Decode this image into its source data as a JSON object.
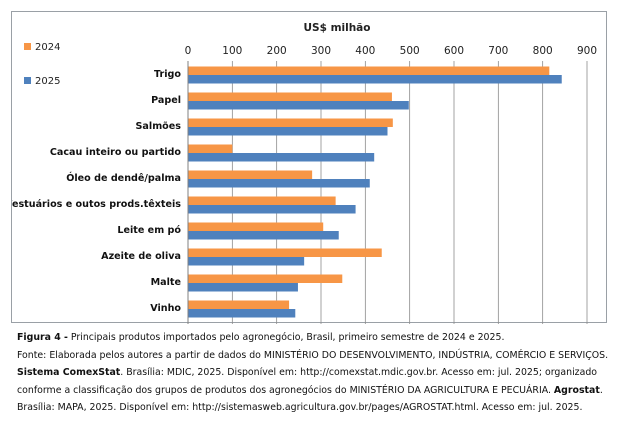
{
  "chart_data": {
    "type": "bar",
    "orientation": "horizontal",
    "title": "US$ milhão",
    "categories": [
      "Trigo",
      "Papel",
      "Salmões",
      "Cacau inteiro ou partido",
      "Óleo de dendê/palma",
      "Vestuários e outos prods.têxteis",
      "Leite em pó",
      "Azeite de oliva",
      "Malte",
      "Vinho"
    ],
    "series": [
      {
        "name": "2024",
        "color": "#F79646",
        "values": [
          815,
          460,
          462,
          100,
          280,
          333,
          305,
          437,
          348,
          228
        ]
      },
      {
        "name": "2025",
        "color": "#4F81BD",
        "values": [
          843,
          498,
          450,
          420,
          410,
          378,
          340,
          262,
          248,
          242
        ]
      }
    ],
    "x_ticks": [
      "0",
      "100",
      "200",
      "300",
      "400",
      "500",
      "600",
      "700",
      "800",
      "900"
    ],
    "xlim": [
      0,
      900
    ],
    "axis_position": "top",
    "legend_position": "top-left",
    "grid": true
  },
  "caption": {
    "figure_label": "Figura 4 -",
    "figure_text": " Principais produtos importados pelo agronegócio, Brasil, primeiro semestre de 2024 e 2025.",
    "source_line1": "Fonte: Elaborada pelos autores a partir de dados do MINISTÉRIO DO DESENVOLVIMENTO, INDÚSTRIA, COMÉRCIO E SERVIÇOS.",
    "source_bold1": "Sistema ComexStat",
    "source_line2": ". Brasília: MDIC, 2025. Disponível em: http://comexstat.mdic.gov.br. Acesso em: jul. 2025; organizado",
    "source_line3": "conforme a classificação dos grupos de produtos dos agronegócios do MINISTÉRIO DA AGRICULTURA E PECUÁRIA. ",
    "source_bold2": "Agrostat",
    "source_line3b": ".",
    "source_line4": "Brasília: MAPA, 2025. Disponível em: http://sistemasweb.agricultura.gov.br/pages/AGROSTAT.html. Acesso em: jul. 2025."
  }
}
